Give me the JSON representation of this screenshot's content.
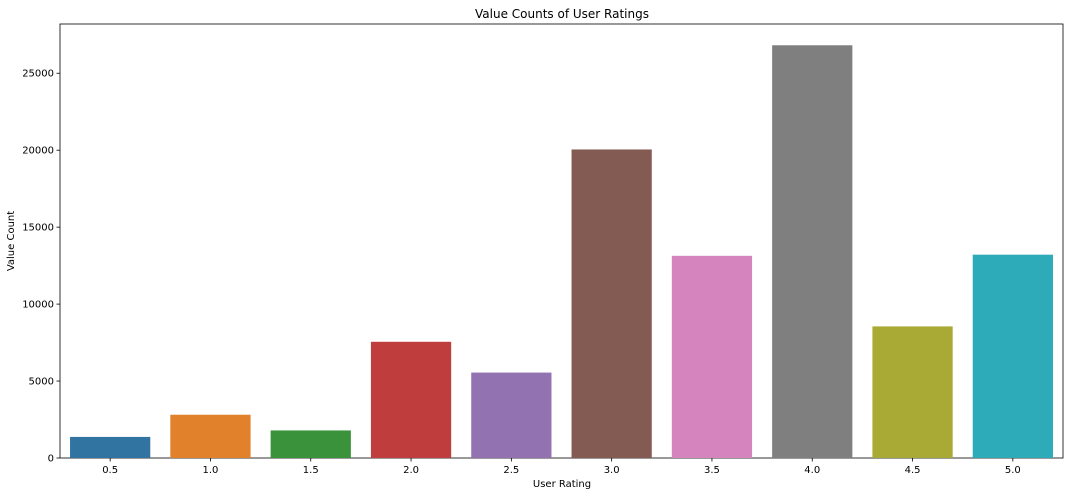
{
  "chart_data": {
    "type": "bar",
    "title": "Value Counts of User Ratings",
    "xlabel": "User Rating",
    "ylabel": "Value Count",
    "categories": [
      "0.5",
      "1.0",
      "1.5",
      "2.0",
      "2.5",
      "3.0",
      "3.5",
      "4.0",
      "4.5",
      "5.0"
    ],
    "values": [
      1370,
      2811,
      1791,
      7551,
      5550,
      20047,
      13136,
      26818,
      8551,
      13211
    ],
    "colors": [
      "#3274a1",
      "#e1812c",
      "#3a923a",
      "#c03d3e",
      "#9372b2",
      "#845b53",
      "#d684bd",
      "#7f7f7f",
      "#a9aa35",
      "#2eabb8"
    ],
    "ylim": [
      0,
      28200
    ],
    "yticks": [
      0,
      5000,
      10000,
      15000,
      20000,
      25000
    ],
    "grid": false,
    "legend": "none"
  }
}
